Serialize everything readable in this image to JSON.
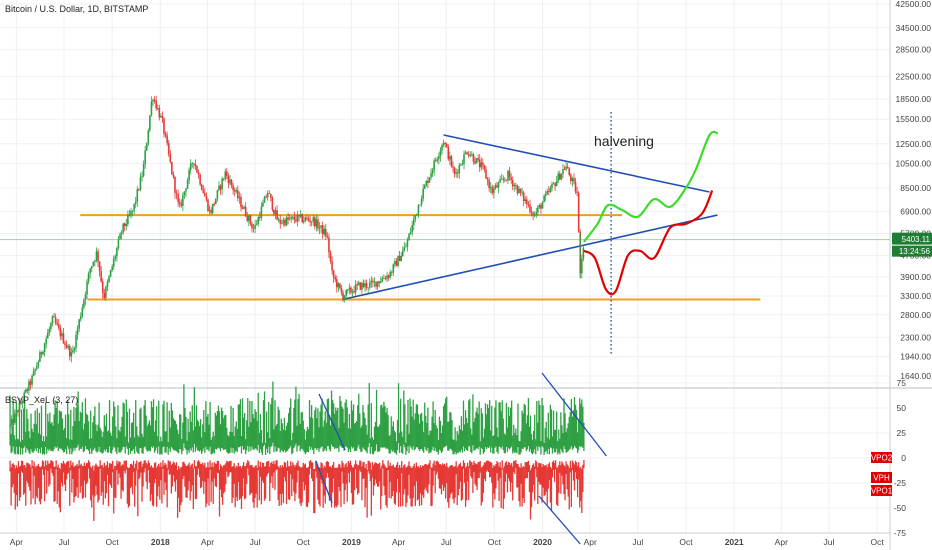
{
  "chart_data": {
    "type": "candlestick",
    "title": "Bitcoin / U.S. Dollar, 1D, BITSTAMP",
    "price_axis": {
      "scale": "log",
      "ticks": [
        1640,
        1940,
        2300,
        2800,
        3300,
        3900,
        4700,
        5700,
        6900,
        8500,
        10500,
        12500,
        15500,
        18500,
        22500,
        28500,
        34500,
        42500
      ],
      "tick_labels": [
        "1640.00",
        "1940.00",
        "2300.00",
        "2800.00",
        "3300.00",
        "3900.00",
        "4700.00",
        "5700.00",
        "6900.00",
        "8500.00",
        "10500.00",
        "12500.00",
        "15500.00",
        "18500.00",
        "22500.00",
        "28500.00",
        "34500.00",
        "42500.00"
      ],
      "last_price_label": "5403.11",
      "countdown_label": "13:24:56",
      "last_price_color": "#1e7e34"
    },
    "time_axis": {
      "labels": [
        "Apr",
        "Jul",
        "Oct",
        "2018",
        "Apr",
        "Jul",
        "Oct",
        "2019",
        "Apr",
        "Jul",
        "Oct",
        "2020",
        "Apr",
        "Jul",
        "Oct",
        "2021",
        "Apr",
        "Jul",
        "Oct"
      ],
      "dates": [
        "2017-04-01",
        "2017-07-01",
        "2017-10-01",
        "2018-01-01",
        "2018-04-01",
        "2018-07-01",
        "2018-10-01",
        "2019-01-01",
        "2019-04-01",
        "2019-07-01",
        "2019-10-01",
        "2020-01-01",
        "2020-04-01",
        "2020-07-01",
        "2020-10-01",
        "2021-01-01",
        "2021-04-01",
        "2021-07-01",
        "2021-10-01"
      ],
      "bold_labels": [
        "2018",
        "2019",
        "2020",
        "2021"
      ]
    },
    "price_path": {
      "dates": [
        "2017-03-20",
        "2017-05-01",
        "2017-06-10",
        "2017-07-16",
        "2017-08-20",
        "2017-09-02",
        "2017-09-15",
        "2017-10-20",
        "2017-11-10",
        "2017-11-29",
        "2017-12-17",
        "2018-01-05",
        "2018-02-06",
        "2018-03-05",
        "2018-04-06",
        "2018-05-05",
        "2018-06-29",
        "2018-07-25",
        "2018-08-14",
        "2018-09-20",
        "2018-10-20",
        "2018-11-15",
        "2018-11-25",
        "2018-12-15",
        "2019-01-15",
        "2019-02-10",
        "2019-03-15",
        "2019-04-15",
        "2019-05-15",
        "2019-06-26",
        "2019-07-17",
        "2019-08-10",
        "2019-09-10",
        "2019-09-26",
        "2019-10-27",
        "2019-12-17",
        "2020-01-20",
        "2020-02-14",
        "2020-03-08",
        "2020-03-12",
        "2020-03-20"
      ],
      "close": [
        1050,
        1600,
        2700,
        1950,
        4200,
        4850,
        3250,
        5900,
        7000,
        9900,
        19300,
        15000,
        7000,
        11000,
        6800,
        9700,
        5900,
        8200,
        6300,
        6500,
        6400,
        5600,
        4000,
        3300,
        3600,
        3650,
        4000,
        5100,
        8000,
        12900,
        9500,
        11800,
        10000,
        8200,
        9500,
        6700,
        8600,
        10300,
        8000,
        4000,
        5400
      ]
    },
    "projections": {
      "red": [
        [
          "2020-03-20",
          4900
        ],
        [
          "2020-04-10",
          4600
        ],
        [
          "2020-05-01",
          3500
        ],
        [
          "2020-05-20",
          3450
        ],
        [
          "2020-06-12",
          4700
        ],
        [
          "2020-07-05",
          4900
        ],
        [
          "2020-08-01",
          4600
        ],
        [
          "2020-09-01",
          6000
        ],
        [
          "2020-10-01",
          6200
        ],
        [
          "2020-11-01",
          6800
        ],
        [
          "2020-11-20",
          8300
        ]
      ],
      "green": [
        [
          "2020-03-20",
          5300
        ],
        [
          "2020-04-15",
          6200
        ],
        [
          "2020-05-05",
          7300
        ],
        [
          "2020-06-01",
          7000
        ],
        [
          "2020-07-01",
          6600
        ],
        [
          "2020-08-01",
          7700
        ],
        [
          "2020-09-01",
          7200
        ],
        [
          "2020-10-01",
          8500
        ],
        [
          "2020-10-20",
          10000
        ],
        [
          "2020-11-15",
          13500
        ],
        [
          "2020-12-01",
          13700
        ]
      ]
    },
    "trendlines": {
      "upper": [
        [
          "2019-06-26",
          13500
        ],
        [
          "2020-11-15",
          8200
        ]
      ],
      "lower": [
        [
          "2018-12-15",
          3200
        ],
        [
          "2020-11-30",
          6700
        ]
      ],
      "resistance": [
        [
          "2017-08-01",
          6700
        ],
        [
          "2020-06-01",
          6700
        ]
      ],
      "support": [
        [
          "2017-08-15",
          3200
        ],
        [
          "2021-02-20",
          3200
        ]
      ]
    },
    "halvening_date": "2020-05-11",
    "annotation": "halvening",
    "oscillator": {
      "title": "BSVP_XeL (3, 27)",
      "ticks": [
        -75,
        -50,
        -25,
        0,
        25,
        50,
        75
      ],
      "tick_labels": [
        "-75",
        "-50",
        "-25",
        "0",
        "25",
        "50",
        "75"
      ],
      "badges": [
        {
          "label": "VPO2",
          "value": 0
        },
        {
          "label": "VPH",
          "value": -20
        },
        {
          "label": "VPO1",
          "value": -33
        }
      ],
      "trendlines": [
        [
          [
            "2018-10-31",
            64
          ],
          [
            "2018-12-20",
            8
          ]
        ],
        [
          [
            "2018-10-25",
            -3
          ],
          [
            "2018-11-25",
            -45
          ]
        ],
        [
          [
            "2019-12-31",
            85
          ],
          [
            "2020-05-02",
            2
          ]
        ],
        [
          [
            "2019-12-25",
            -38
          ],
          [
            "2020-03-13",
            -86
          ]
        ]
      ]
    },
    "colors": {
      "up": "#26a69a",
      "green": "#2ea043",
      "red": "#e53935",
      "trendline": "#1f4fb5",
      "horizontal": "#f59c1a",
      "red_projection": "#e00000",
      "green_projection": "#3ddc2a",
      "last_price_line": "#9ed39a",
      "badge": "#e00000"
    }
  }
}
